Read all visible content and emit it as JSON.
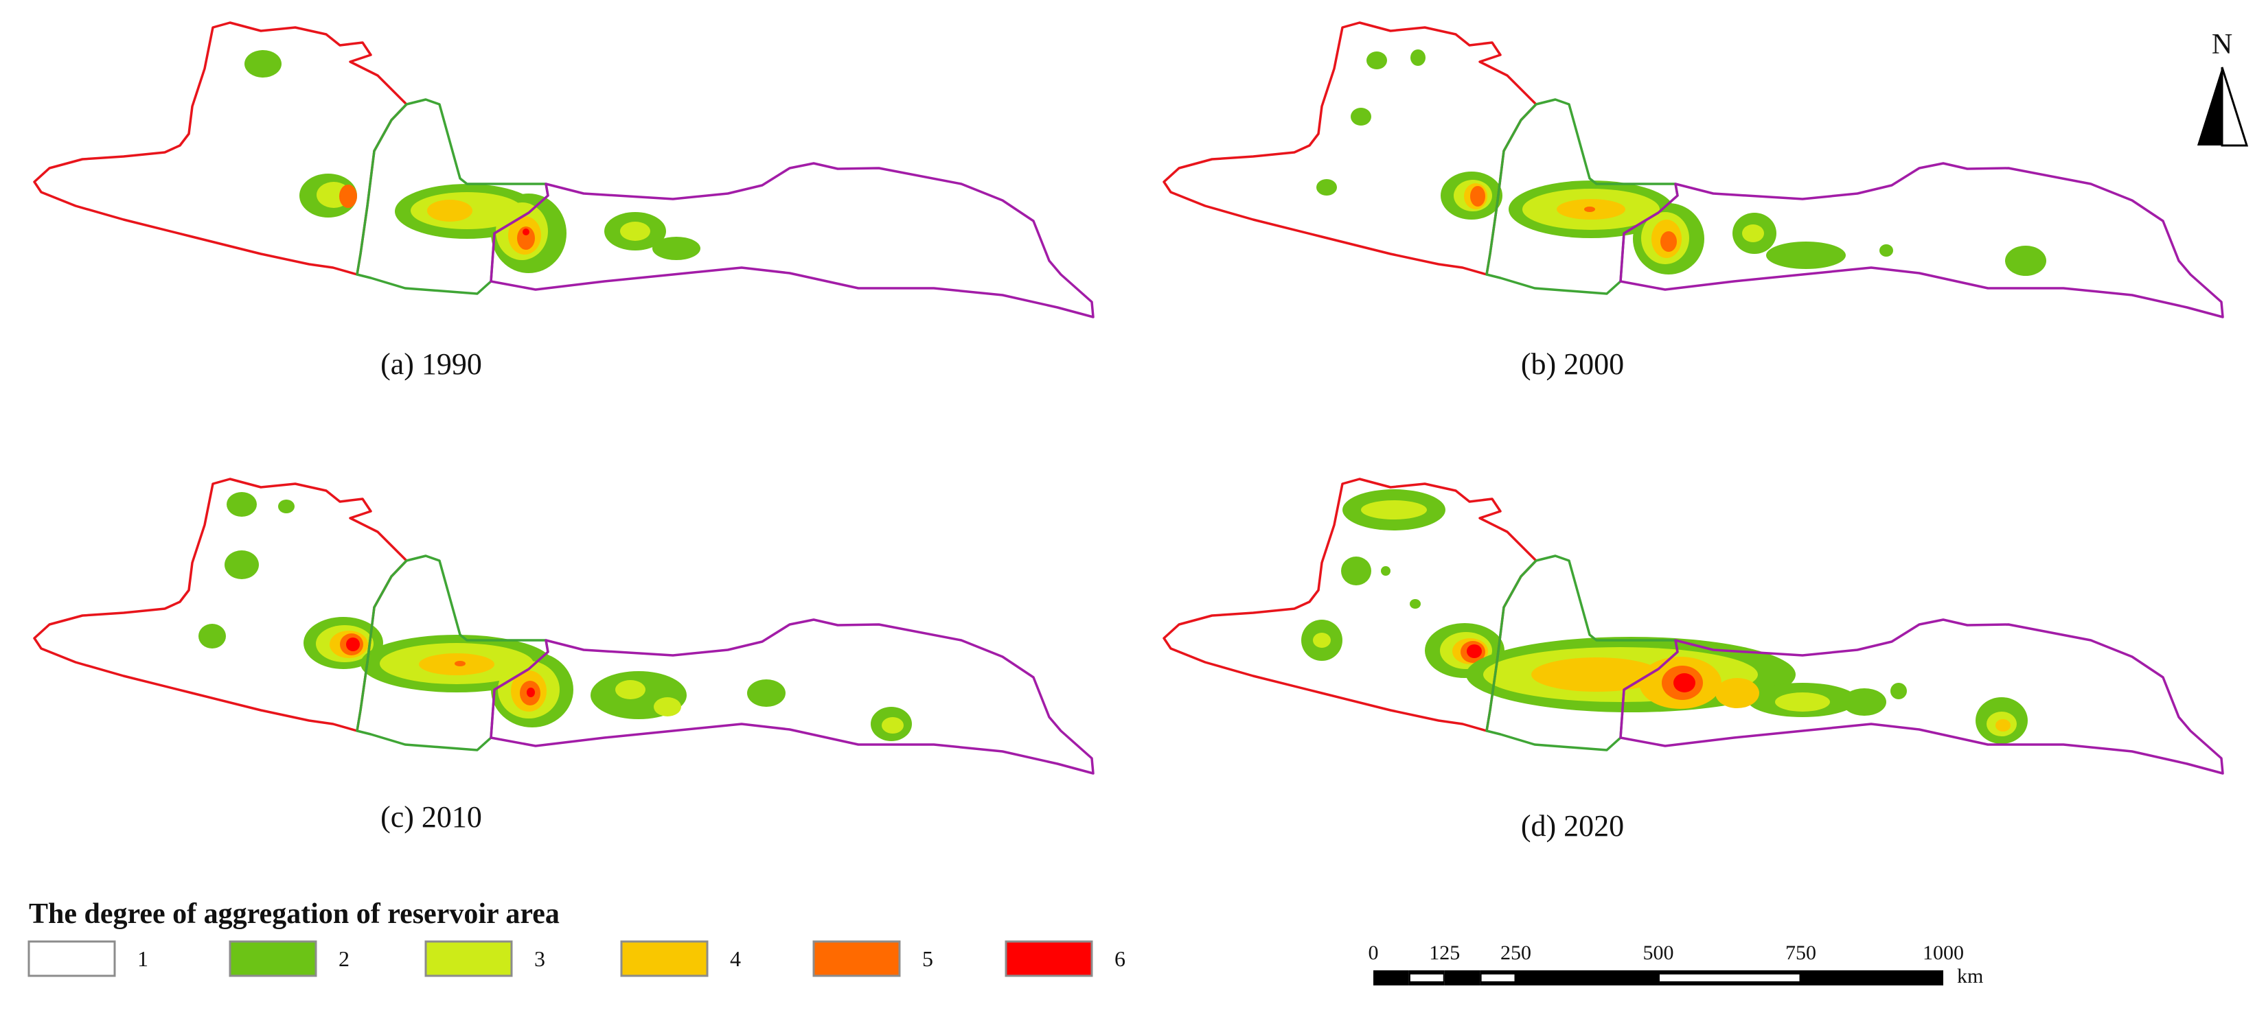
{
  "panels": [
    {
      "key": "a",
      "caption": "(a) 1990"
    },
    {
      "key": "b",
      "caption": "(b) 2000"
    },
    {
      "key": "c",
      "caption": "(c) 2010"
    },
    {
      "key": "d",
      "caption": "(d) 2020"
    }
  ],
  "north_arrow": {
    "label": "N",
    "icon": "north-arrow-icon"
  },
  "legend": {
    "title": "The degree of aggregation of reservoir area",
    "items": [
      {
        "label": "1",
        "color": "#FFFFFF"
      },
      {
        "label": "2",
        "color": "#6CC316"
      },
      {
        "label": "3",
        "color": "#CDEB18"
      },
      {
        "label": "4",
        "color": "#F9C700"
      },
      {
        "label": "5",
        "color": "#FF6A00"
      },
      {
        "label": "6",
        "color": "#FF0000"
      }
    ]
  },
  "scale_bar": {
    "ticks": [
      "0",
      "125",
      "250",
      "500",
      "750",
      "1000"
    ],
    "unit": "km"
  },
  "boundary_colors": {
    "west": "#E8141B",
    "middle": "#3FA535",
    "east": "#A21CA7"
  }
}
